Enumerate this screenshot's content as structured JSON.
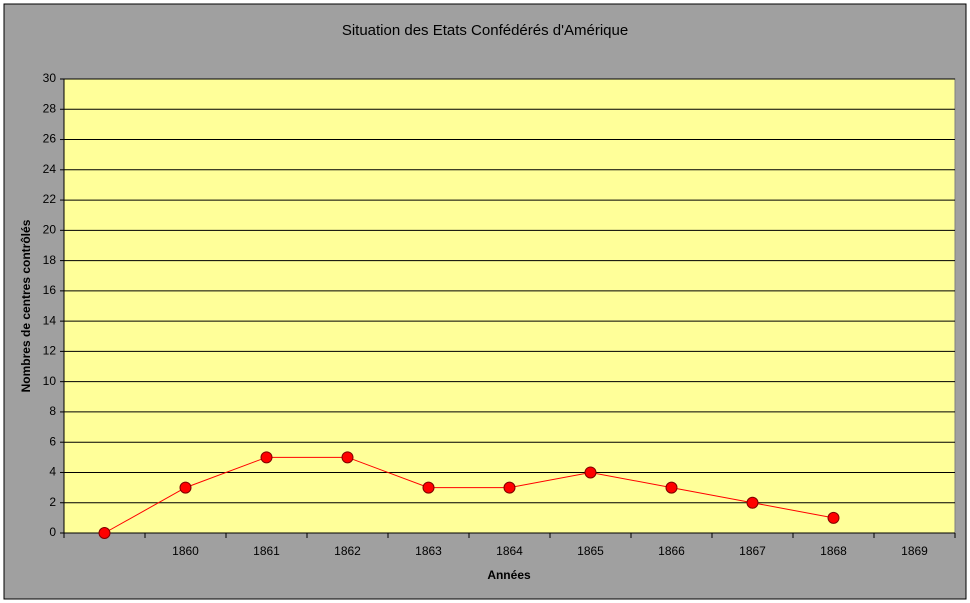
{
  "chart_data": {
    "type": "line",
    "title": "Situation des Etats Confédérés d'Amérique",
    "x_label": "Années",
    "y_label": "Nombres de centres contrôlés",
    "categories": [
      null,
      "1860",
      "1861",
      "1862",
      "1863",
      "1864",
      "1865",
      "1866",
      "1867",
      "1868",
      "1869"
    ],
    "values": [
      0,
      3,
      5,
      5,
      3,
      3,
      4,
      3,
      2,
      1,
      null
    ],
    "color": "#ff0000",
    "ylim": [
      0,
      30
    ],
    "yticks": [
      0,
      2,
      4,
      6,
      8,
      10,
      12,
      14,
      16,
      18,
      20,
      22,
      24,
      26,
      28,
      30
    ],
    "grid": true
  }
}
